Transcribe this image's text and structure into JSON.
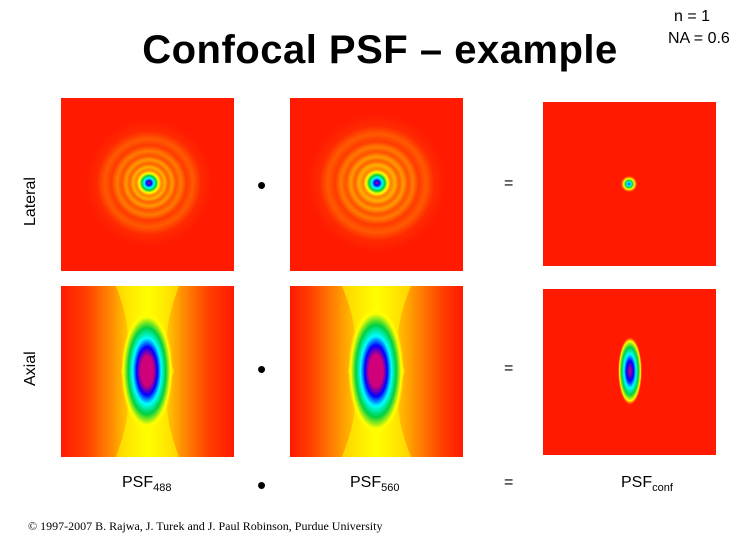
{
  "title": "Confocal PSF – example",
  "parameters": {
    "n": "n = 1",
    "na": "NA = 0.6"
  },
  "row_labels": {
    "lateral": "Lateral",
    "axial": "Axial"
  },
  "operators": {
    "multiply": "•",
    "equals": "="
  },
  "captions": {
    "psf1_base": "PSF",
    "psf1_sub": "488",
    "psf2_base": "PSF",
    "psf2_sub": "560",
    "psf3_base": "PSF",
    "psf3_sub": "conf"
  },
  "credit": "© 1997-2007 B. Rajwa, J. Turek and J. Paul Robinson, Purdue University",
  "colors": {
    "background": "#ff1a00",
    "yellow": "#ffff00",
    "green": "#00d040",
    "cyan": "#00ffff",
    "blue": "#0000ff",
    "magenta": "#d0007a"
  }
}
